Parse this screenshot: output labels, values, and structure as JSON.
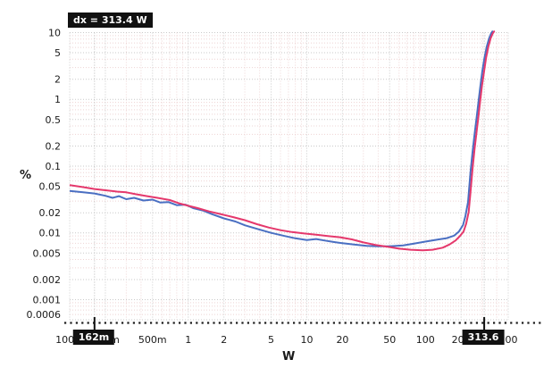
{
  "figure": {
    "dx_badge": "dx = 313.4 W",
    "cursor1_label": "162m",
    "cursor2_label": "313.6",
    "ylabel": "%",
    "xlabel": "W"
  },
  "colors": {
    "series_blue": "#4a6fc2",
    "series_red": "#e5386c",
    "grid_minor": "#eed4d4",
    "grid_major": "#c9c9c9",
    "cursor_line": "#b5b5b5",
    "baseline_dotted": "#1c1c1c",
    "badge_bg": "#111111",
    "badge_fg": "#ffffff",
    "text": "#1a1a1a"
  },
  "chart_data": {
    "type": "line",
    "title": "",
    "xlabel": "W",
    "ylabel": "%",
    "x_scale": "log",
    "y_scale": "log",
    "xlim": [
      0.1,
      500
    ],
    "ylim": [
      0.0005,
      10
    ],
    "grid": true,
    "legend": "none",
    "x_tick_labels": [
      {
        "value": 0.1,
        "label": "100m"
      },
      {
        "value": 0.2,
        "label": "200m"
      },
      {
        "value": 0.5,
        "label": "500m"
      },
      {
        "value": 1,
        "label": "1"
      },
      {
        "value": 2,
        "label": "2"
      },
      {
        "value": 5,
        "label": "5"
      },
      {
        "value": 10,
        "label": "10"
      },
      {
        "value": 20,
        "label": "20"
      },
      {
        "value": 50,
        "label": "50"
      },
      {
        "value": 100,
        "label": "100"
      },
      {
        "value": 200,
        "label": "200"
      },
      {
        "value": 500,
        "label": "500"
      }
    ],
    "y_tick_labels": [
      {
        "value": 10,
        "label": "10"
      },
      {
        "value": 5,
        "label": "5"
      },
      {
        "value": 2,
        "label": "2"
      },
      {
        "value": 1,
        "label": "1"
      },
      {
        "value": 0.5,
        "label": "0.5"
      },
      {
        "value": 0.2,
        "label": "0.2"
      },
      {
        "value": 0.1,
        "label": "0.1"
      },
      {
        "value": 0.05,
        "label": "0.05"
      },
      {
        "value": 0.02,
        "label": "0.02"
      },
      {
        "value": 0.01,
        "label": "0.01"
      },
      {
        "value": 0.005,
        "label": "0.005"
      },
      {
        "value": 0.002,
        "label": "0.002"
      },
      {
        "value": 0.001,
        "label": "0.001"
      },
      {
        "value": 0.0006,
        "label": "0.0006"
      }
    ],
    "cursors": {
      "x1_w": 0.162,
      "x1_label": "162m",
      "x2_w": 313.6,
      "x2_label": "313.6",
      "dx_label": "dx = 313.4 W",
      "baseline_at_bottom": true
    },
    "series": [
      {
        "name": "measurement-blue",
        "color": "#4a6fc2",
        "points": [
          [
            0.1,
            0.0425
          ],
          [
            0.13,
            0.0405
          ],
          [
            0.162,
            0.039
          ],
          [
            0.2,
            0.036
          ],
          [
            0.23,
            0.0335
          ],
          [
            0.26,
            0.0355
          ],
          [
            0.3,
            0.032
          ],
          [
            0.35,
            0.0335
          ],
          [
            0.42,
            0.0305
          ],
          [
            0.5,
            0.0315
          ],
          [
            0.58,
            0.0285
          ],
          [
            0.68,
            0.029
          ],
          [
            0.8,
            0.026
          ],
          [
            0.95,
            0.0265
          ],
          [
            1.1,
            0.0235
          ],
          [
            1.35,
            0.0215
          ],
          [
            1.6,
            0.019
          ],
          [
            2,
            0.0165
          ],
          [
            2.5,
            0.0148
          ],
          [
            3,
            0.013
          ],
          [
            4,
            0.0112
          ],
          [
            5,
            0.01
          ],
          [
            6.5,
            0.009
          ],
          [
            8,
            0.0083
          ],
          [
            10,
            0.0078
          ],
          [
            12,
            0.0081
          ],
          [
            14,
            0.0077
          ],
          [
            17,
            0.0073
          ],
          [
            20,
            0.007
          ],
          [
            25,
            0.0067
          ],
          [
            32,
            0.0064
          ],
          [
            40,
            0.0063
          ],
          [
            50,
            0.0063
          ],
          [
            65,
            0.0065
          ],
          [
            80,
            0.0069
          ],
          [
            100,
            0.0074
          ],
          [
            130,
            0.008
          ],
          [
            150,
            0.0083
          ],
          [
            175,
            0.0091
          ],
          [
            192,
            0.0105
          ],
          [
            208,
            0.0131
          ],
          [
            218,
            0.018
          ],
          [
            229,
            0.029
          ],
          [
            240,
            0.08
          ],
          [
            250,
            0.16
          ],
          [
            260,
            0.3
          ],
          [
            270,
            0.52
          ],
          [
            280,
            0.9
          ],
          [
            290,
            1.5
          ],
          [
            302,
            2.6
          ],
          [
            315,
            4.2
          ],
          [
            330,
            6.2
          ],
          [
            345,
            8.2
          ],
          [
            358,
            9.6
          ],
          [
            368,
            10.4
          ]
        ]
      },
      {
        "name": "measurement-red",
        "color": "#e5386c",
        "points": [
          [
            0.1,
            0.052
          ],
          [
            0.13,
            0.0485
          ],
          [
            0.162,
            0.0455
          ],
          [
            0.2,
            0.0435
          ],
          [
            0.25,
            0.0415
          ],
          [
            0.3,
            0.0405
          ],
          [
            0.36,
            0.038
          ],
          [
            0.45,
            0.0355
          ],
          [
            0.55,
            0.0335
          ],
          [
            0.7,
            0.031
          ],
          [
            0.85,
            0.0275
          ],
          [
            1,
            0.0255
          ],
          [
            1.2,
            0.0235
          ],
          [
            1.5,
            0.021
          ],
          [
            1.9,
            0.019
          ],
          [
            2.4,
            0.0172
          ],
          [
            3,
            0.0155
          ],
          [
            3.8,
            0.0135
          ],
          [
            4.8,
            0.012
          ],
          [
            6,
            0.011
          ],
          [
            7.5,
            0.0103
          ],
          [
            9.5,
            0.0098
          ],
          [
            12,
            0.0094
          ],
          [
            15,
            0.009
          ],
          [
            19,
            0.0086
          ],
          [
            24,
            0.008
          ],
          [
            30,
            0.0072
          ],
          [
            38,
            0.0066
          ],
          [
            48,
            0.0062
          ],
          [
            60,
            0.0058
          ],
          [
            75,
            0.0056
          ],
          [
            95,
            0.0055
          ],
          [
            115,
            0.0056
          ],
          [
            140,
            0.006
          ],
          [
            160,
            0.0067
          ],
          [
            180,
            0.0077
          ],
          [
            195,
            0.0089
          ],
          [
            210,
            0.0105
          ],
          [
            221,
            0.0137
          ],
          [
            232,
            0.0205
          ],
          [
            239,
            0.036
          ],
          [
            250,
            0.09
          ],
          [
            260,
            0.18
          ],
          [
            270,
            0.32
          ],
          [
            280,
            0.55
          ],
          [
            290,
            0.95
          ],
          [
            300,
            1.6
          ],
          [
            313.4,
            2.7
          ],
          [
            325,
            4.2
          ],
          [
            340,
            6.2
          ],
          [
            355,
            8.2
          ],
          [
            370,
            9.7
          ],
          [
            380,
            10.4
          ]
        ]
      }
    ]
  }
}
